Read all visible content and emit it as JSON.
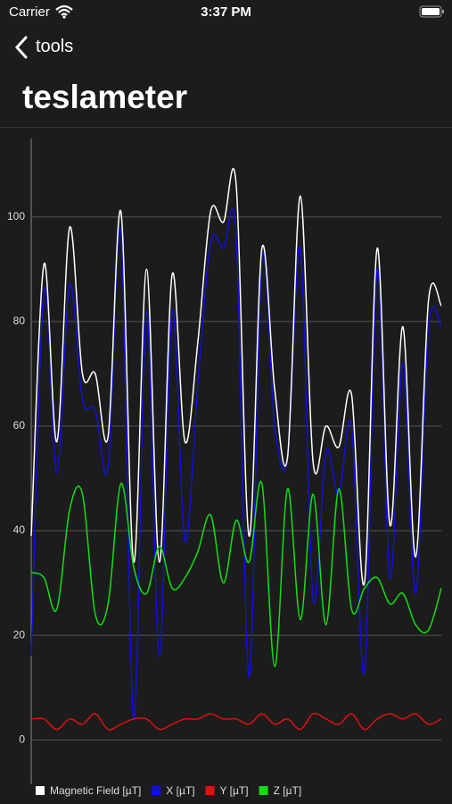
{
  "status_bar": {
    "carrier": "Carrier",
    "time": "3:37 PM"
  },
  "nav": {
    "back": "tools",
    "title": "teslameter"
  },
  "chart_data": {
    "type": "line",
    "ylim": [
      -8.5,
      115
    ],
    "yticks": [
      0,
      20,
      40,
      60,
      80,
      100
    ],
    "grid": true,
    "legend": "bottom-left",
    "series": [
      {
        "name": "Magnetic Field [µT]",
        "color": "#ffffff",
        "values": [
          39,
          91,
          57,
          98,
          70,
          70,
          58,
          101,
          34,
          90,
          34,
          89,
          57,
          76,
          101,
          99,
          106,
          39,
          94,
          67,
          54,
          104,
          53,
          60,
          56,
          66,
          30,
          94,
          41,
          79,
          35,
          84,
          83
        ]
      },
      {
        "name": "X [µT]",
        "color": "#1010e0",
        "values": [
          16,
          86,
          51,
          87,
          65,
          63,
          52,
          97,
          4,
          82,
          16,
          82,
          38,
          68,
          95,
          94,
          96,
          12,
          92,
          60,
          54,
          94,
          27,
          55,
          47,
          60,
          13,
          90,
          31,
          72,
          28,
          79,
          79
        ]
      },
      {
        "name": "Y [µT]",
        "color": "#e01010",
        "values": [
          4,
          4,
          2,
          4,
          3,
          5,
          2,
          3,
          4,
          4,
          2,
          3,
          4,
          4,
          5,
          4,
          4,
          3,
          5,
          3,
          4,
          2,
          5,
          4,
          3,
          5,
          2,
          4,
          5,
          4,
          5,
          3,
          4
        ]
      },
      {
        "name": "Z [µT]",
        "color": "#10e010",
        "values": [
          32,
          31,
          25,
          44,
          47,
          24,
          26,
          49,
          33,
          28,
          37,
          29,
          31,
          36,
          43,
          30,
          42,
          34,
          49,
          14,
          48,
          23,
          47,
          22,
          48,
          25,
          29,
          31,
          26,
          28,
          22,
          21,
          29
        ]
      }
    ]
  }
}
